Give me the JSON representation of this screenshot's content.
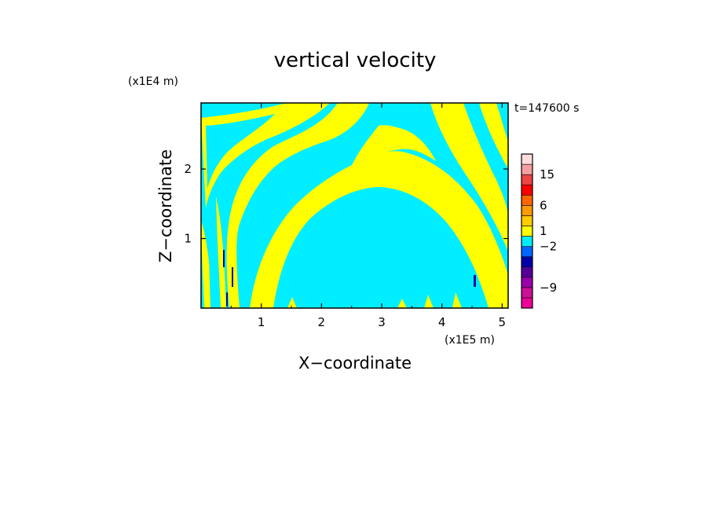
{
  "chart_data": {
    "type": "heatmap",
    "title": "vertical velocity",
    "xlabel": "X−coordinate",
    "ylabel": "Z−coordinate",
    "x_unit": "(x1E5 m)",
    "y_unit": "(x1E4 m)",
    "time_label": "t=147600 s",
    "xlim": [
      0,
      5.1
    ],
    "ylim": [
      0,
      2.95
    ],
    "x_ticks": [
      "1",
      "2",
      "3",
      "4",
      "5"
    ],
    "x_tick_values": [
      1,
      2,
      3,
      4,
      5
    ],
    "y_ticks": [
      "1",
      "2"
    ],
    "y_tick_values": [
      1,
      2
    ],
    "colorbar": {
      "colors": [
        "#ee0099",
        "#cc1199",
        "#9900aa",
        "#550099",
        "#0000aa",
        "#0066ff",
        "#00eeff",
        "#ffff00",
        "#ffcc00",
        "#ff9900",
        "#ff6600",
        "#ff0000",
        "#ee4444",
        "#f4a0a0",
        "#ffdddd"
      ],
      "tick_labels": [
        "15",
        "6",
        "1",
        "−2",
        "−9"
      ],
      "tick_values": [
        15,
        6,
        1,
        -2,
        -9
      ],
      "tick_levels": [
        13,
        10,
        7.5,
        6,
        2
      ]
    },
    "field": {
      "positive_color": "#ffff00",
      "negative_color": "#00eeff"
    }
  }
}
